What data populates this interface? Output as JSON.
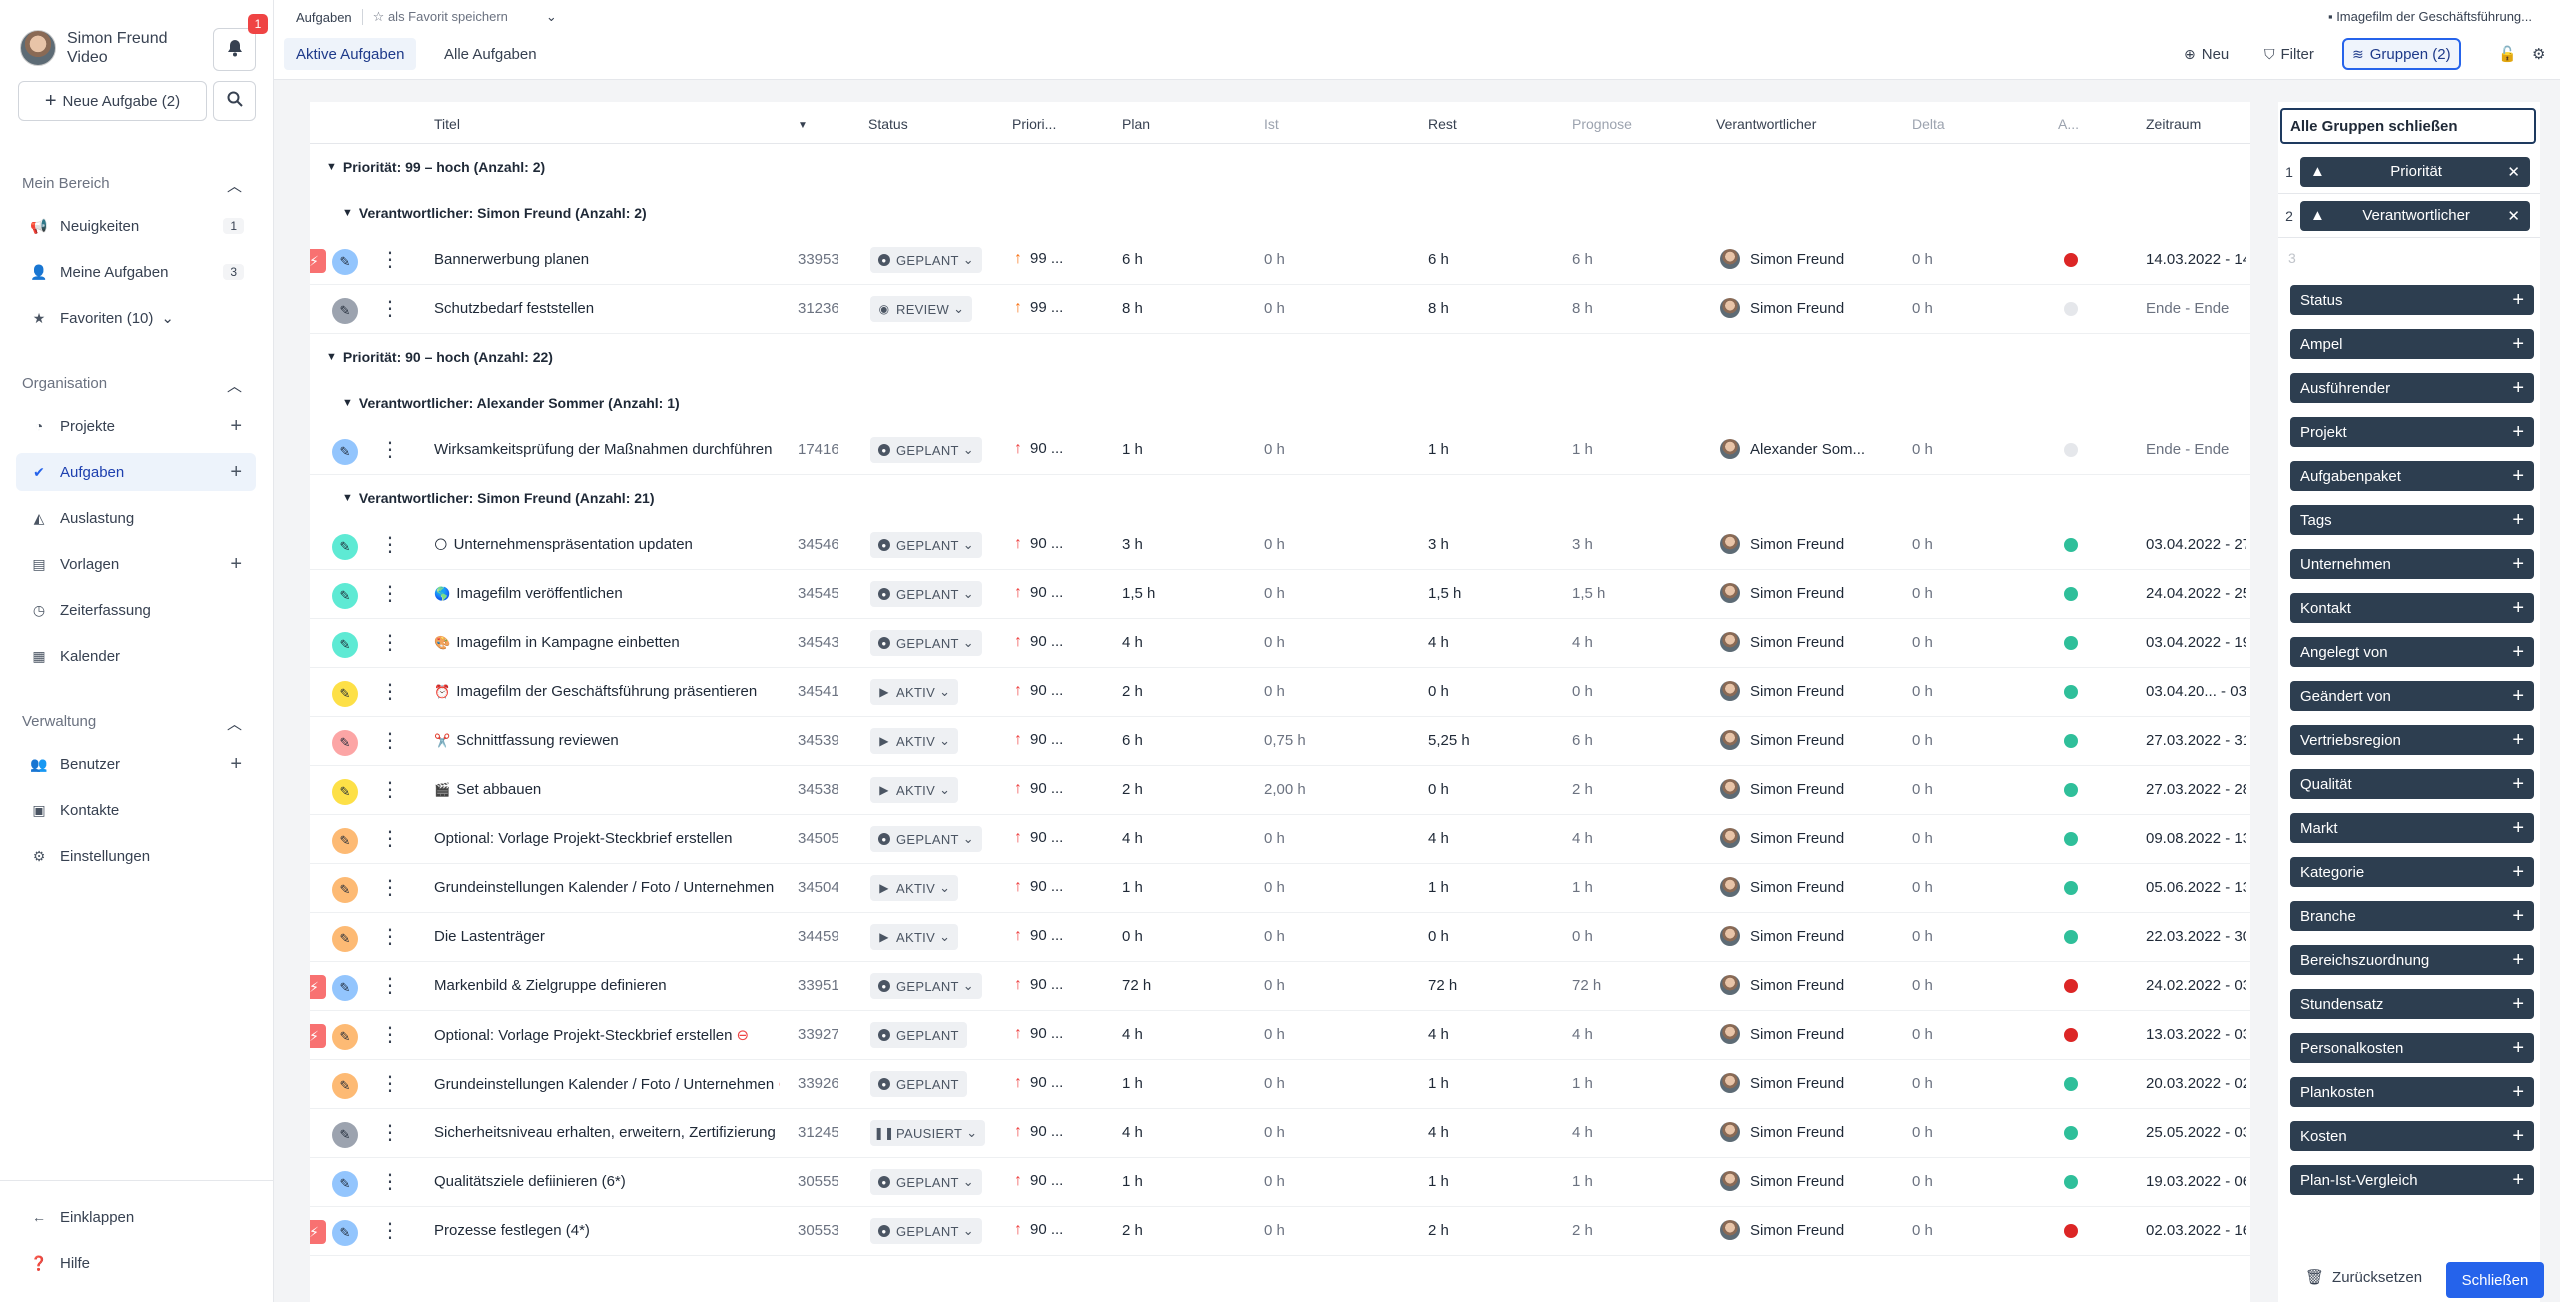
{
  "user": {
    "name": "Simon Freund",
    "role": "Video",
    "notifications": "1"
  },
  "sidebar": {
    "new_task": "Neue Aufgabe (2)",
    "sections": [
      {
        "title": "Mein Bereich"
      },
      {
        "title": "Organisation"
      },
      {
        "title": "Verwaltung"
      }
    ],
    "mein": [
      {
        "label": "Neuigkeiten",
        "count": "1"
      },
      {
        "label": "Meine Aufgaben",
        "count": "3"
      },
      {
        "label": "Favoriten (10)"
      }
    ],
    "org": [
      {
        "label": "Projekte"
      },
      {
        "label": "Aufgaben"
      },
      {
        "label": "Auslastung"
      },
      {
        "label": "Vorlagen"
      },
      {
        "label": "Zeiterfassung"
      },
      {
        "label": "Kalender"
      }
    ],
    "verw": [
      {
        "label": "Benutzer"
      },
      {
        "label": "Kontakte"
      },
      {
        "label": "Einstellungen"
      }
    ],
    "collapse": "Einklappen",
    "help": "Hilfe"
  },
  "header": {
    "breadcrumb": "Aufgaben",
    "favorite": "als Favorit speichern",
    "right_title": "Imagefilm der Geschäftsführung...",
    "tabs": [
      "Aktive Aufgaben",
      "Alle Aufgaben"
    ],
    "new": "Neu",
    "filter": "Filter",
    "groups": "Gruppen (2)"
  },
  "columns": {
    "title": "Titel",
    "status": "Status",
    "priority": "Priori...",
    "plan": "Plan",
    "actual": "Ist",
    "rest": "Rest",
    "forecast": "Prognose",
    "responsible": "Verantwortlicher",
    "delta": "Delta",
    "ampel": "A...",
    "period": "Zeitraum"
  },
  "groups": [
    {
      "label": "Priorität: 99 – hoch (Anzahl: 2)"
    },
    {
      "label": "Verantwortlicher: Simon Freund (Anzahl: 2)"
    },
    {
      "label": "Priorität: 90 – hoch (Anzahl: 22)"
    },
    {
      "label": "Verantwortlicher: Alexander Sommer (Anzahl: 1)"
    },
    {
      "label": "Verantwortlicher: Simon Freund (Anzahl: 21)"
    }
  ],
  "rows": [
    {
      "flash": true,
      "icon_color": "#93c5fd",
      "title": "Bannerwerbung planen",
      "id": "33953",
      "status": "GEPLANT",
      "status_kind": "planned",
      "prio": "99 ...",
      "prio_color": "#f97316",
      "plan": "6 h",
      "ist": "0 h",
      "rest": "6 h",
      "prog": "6 h",
      "resp": "Simon Freund",
      "delta": "0 h",
      "ampel": "#dc2626",
      "period": "14.03.2022 - 14"
    },
    {
      "flash": false,
      "icon_color": "#9ca3af",
      "title": "Schutzbedarf feststellen",
      "id": "31236",
      "status": "REVIEW",
      "status_kind": "review",
      "prio": "99 ...",
      "prio_color": "#f97316",
      "plan": "8 h",
      "ist": "0 h",
      "rest": "8 h",
      "prog": "8 h",
      "resp": "Simon Freund",
      "delta": "0 h",
      "ampel": "#e5e7eb",
      "period": "Ende - Ende"
    },
    {
      "flash": false,
      "icon_color": "#93c5fd",
      "title": "Wirksamkeitsprüfung der Maßnahmen durchführen",
      "id": "17416",
      "status": "GEPLANT",
      "status_kind": "planned",
      "prio": "90 ...",
      "prio_color": "#ef4444",
      "plan": "1 h",
      "ist": "0 h",
      "rest": "1 h",
      "prog": "1 h",
      "resp": "Alexander Som...",
      "delta": "0 h",
      "ampel": "#e5e7eb",
      "period": "Ende - Ende"
    },
    {
      "flash": false,
      "icon_color": "#5eead4",
      "emoji": "🌕",
      "title": "Unternehmenspräsentation updaten",
      "id": "34546",
      "status": "GEPLANT",
      "status_kind": "planned",
      "prio": "90 ...",
      "prio_color": "#ef4444",
      "plan": "3 h",
      "ist": "0 h",
      "rest": "3 h",
      "prog": "3 h",
      "resp": "Simon Freund",
      "delta": "0 h",
      "ampel": "#2fbf9a",
      "period": "03.04.2022 - 27"
    },
    {
      "flash": false,
      "icon_color": "#5eead4",
      "emoji": "🌎",
      "title": "Imagefilm veröffentlichen",
      "id": "34545",
      "status": "GEPLANT",
      "status_kind": "planned",
      "prio": "90 ...",
      "prio_color": "#ef4444",
      "plan": "1,5 h",
      "ist": "0 h",
      "rest": "1,5 h",
      "prog": "1,5 h",
      "resp": "Simon Freund",
      "delta": "0 h",
      "ampel": "#2fbf9a",
      "period": "24.04.2022 - 25"
    },
    {
      "flash": false,
      "icon_color": "#5eead4",
      "emoji": "🎨",
      "title": "Imagefilm in Kampagne einbetten",
      "id": "34543",
      "status": "GEPLANT",
      "status_kind": "planned",
      "prio": "90 ...",
      "prio_color": "#ef4444",
      "plan": "4 h",
      "ist": "0 h",
      "rest": "4 h",
      "prog": "4 h",
      "resp": "Simon Freund",
      "delta": "0 h",
      "ampel": "#2fbf9a",
      "period": "03.04.2022 - 19"
    },
    {
      "flash": false,
      "icon_color": "#fde047",
      "emoji": "⏰",
      "title": "Imagefilm der Geschäftsführung präsentieren",
      "id": "34541",
      "status": "AKTIV",
      "status_kind": "active",
      "prio": "90 ...",
      "prio_color": "#ef4444",
      "plan": "2 h",
      "ist": "0 h",
      "rest": "0 h",
      "prog": "0 h",
      "resp": "Simon Freund",
      "delta": "0 h",
      "ampel": "#2fbf9a",
      "period": "03.04.20... - 03"
    },
    {
      "flash": false,
      "icon_color": "#fca5a5",
      "emoji": "✂️",
      "title": "Schnittfassung reviewen",
      "id": "34539",
      "status": "AKTIV",
      "status_kind": "active",
      "prio": "90 ...",
      "prio_color": "#ef4444",
      "plan": "6 h",
      "ist": "0,75 h",
      "rest": "5,25 h",
      "prog": "6 h",
      "resp": "Simon Freund",
      "delta": "0 h",
      "ampel": "#2fbf9a",
      "period": "27.03.2022 - 31"
    },
    {
      "flash": false,
      "icon_color": "#fde047",
      "emoji": "🎬",
      "title": "Set abbauen",
      "id": "34538",
      "status": "AKTIV",
      "status_kind": "active",
      "prio": "90 ...",
      "prio_color": "#ef4444",
      "plan": "2 h",
      "ist": "2,00 h",
      "rest": "0 h",
      "prog": "2 h",
      "resp": "Simon Freund",
      "delta": "0 h",
      "ampel": "#2fbf9a",
      "period": "27.03.2022 - 28"
    },
    {
      "flash": false,
      "icon_color": "#fdba74",
      "title": "Optional: Vorlage Projekt-Steckbrief erstellen",
      "id": "34505",
      "status": "GEPLANT",
      "status_kind": "planned",
      "prio": "90 ...",
      "prio_color": "#ef4444",
      "plan": "4 h",
      "ist": "0 h",
      "rest": "4 h",
      "prog": "4 h",
      "resp": "Simon Freund",
      "delta": "0 h",
      "ampel": "#2fbf9a",
      "period": "09.08.2022 - 13"
    },
    {
      "flash": false,
      "icon_color": "#fdba74",
      "title": "Grundeinstellungen Kalender / Foto / Unternehmen",
      "id": "34504",
      "status": "AKTIV",
      "status_kind": "active",
      "prio": "90 ...",
      "prio_color": "#ef4444",
      "plan": "1 h",
      "ist": "0 h",
      "rest": "1 h",
      "prog": "1 h",
      "resp": "Simon Freund",
      "delta": "0 h",
      "ampel": "#2fbf9a",
      "period": "05.06.2022 - 13"
    },
    {
      "flash": false,
      "icon_color": "#fdba74",
      "title": "Die Lastenträger",
      "id": "34459",
      "status": "AKTIV",
      "status_kind": "active",
      "prio": "90 ...",
      "prio_color": "#ef4444",
      "plan": "0 h",
      "ist": "0 h",
      "rest": "0 h",
      "prog": "0 h",
      "resp": "Simon Freund",
      "delta": "0 h",
      "ampel": "#2fbf9a",
      "period": "22.03.2022 - 30"
    },
    {
      "flash": true,
      "icon_color": "#93c5fd",
      "title": "Markenbild & Zielgruppe definieren",
      "id": "33951",
      "status": "GEPLANT",
      "status_kind": "planned",
      "prio": "90 ...",
      "prio_color": "#ef4444",
      "plan": "72 h",
      "ist": "0 h",
      "rest": "72 h",
      "prog": "72 h",
      "resp": "Simon Freund",
      "delta": "0 h",
      "ampel": "#dc2626",
      "period": "24.02.2022 - 03"
    },
    {
      "flash": true,
      "icon_color": "#fdba74",
      "title": "Optional: Vorlage Projekt-Steckbrief erstellen",
      "blocked": true,
      "id": "33927",
      "status": "GEPLANT",
      "status_kind": "planned_nodd",
      "prio": "90 ...",
      "prio_color": "#ef4444",
      "plan": "4 h",
      "ist": "0 h",
      "rest": "4 h",
      "prog": "4 h",
      "resp": "Simon Freund",
      "delta": "0 h",
      "ampel": "#dc2626",
      "period": "13.03.2022 - 03"
    },
    {
      "flash": false,
      "icon_color": "#fdba74",
      "title": "Grundeinstellungen Kalender / Foto / Unternehmen",
      "blocked": true,
      "id": "33926",
      "status": "GEPLANT",
      "status_kind": "planned_nodd",
      "prio": "90 ...",
      "prio_color": "#ef4444",
      "plan": "1 h",
      "ist": "0 h",
      "rest": "1 h",
      "prog": "1 h",
      "resp": "Simon Freund",
      "delta": "0 h",
      "ampel": "#2fbf9a",
      "period": "20.03.2022 - 02"
    },
    {
      "flash": false,
      "icon_color": "#9ca3af",
      "title": "Sicherheitsniveau erhalten, erweitern, Zertifizierung",
      "id": "31245",
      "status": "PAUSIERT",
      "status_kind": "paused",
      "prio": "90 ...",
      "prio_color": "#ef4444",
      "plan": "4 h",
      "ist": "0 h",
      "rest": "4 h",
      "prog": "4 h",
      "resp": "Simon Freund",
      "delta": "0 h",
      "ampel": "#2fbf9a",
      "period": "25.05.2022 - 03"
    },
    {
      "flash": false,
      "icon_color": "#93c5fd",
      "title": "Qualitätsziele defiinieren (6*)",
      "id": "30555",
      "status": "GEPLANT",
      "status_kind": "planned",
      "prio": "90 ...",
      "prio_color": "#ef4444",
      "plan": "1 h",
      "ist": "0 h",
      "rest": "1 h",
      "prog": "1 h",
      "resp": "Simon Freund",
      "delta": "0 h",
      "ampel": "#2fbf9a",
      "period": "19.03.2022 - 06"
    },
    {
      "flash": true,
      "icon_color": "#93c5fd",
      "title": "Prozesse festlegen (4*)",
      "id": "30553",
      "status": "GEPLANT",
      "status_kind": "planned",
      "prio": "90 ...",
      "prio_color": "#ef4444",
      "plan": "2 h",
      "ist": "0 h",
      "rest": "2 h",
      "prog": "2 h",
      "resp": "Simon Freund",
      "delta": "0 h",
      "ampel": "#dc2626",
      "period": "02.03.2022 - 16"
    }
  ],
  "panel": {
    "close_all": "Alle Gruppen schließen",
    "selected": [
      {
        "num": "1",
        "label": "Priorität"
      },
      {
        "num": "2",
        "label": "Verantwortlicher"
      }
    ],
    "next_num": "3",
    "options": [
      "Status",
      "Ampel",
      "Ausführender",
      "Projekt",
      "Aufgabenpaket",
      "Tags",
      "Unternehmen",
      "Kontakt",
      "Angelegt von",
      "Geändert von",
      "Vertriebsregion",
      "Qualität",
      "Markt",
      "Kategorie",
      "Branche",
      "Bereichszuordnung",
      "Stundensatz",
      "Personalkosten",
      "Plankosten",
      "Kosten",
      "Plan-Ist-Vergleich"
    ],
    "reset": "Zurücksetzen",
    "close": "Schließen"
  }
}
